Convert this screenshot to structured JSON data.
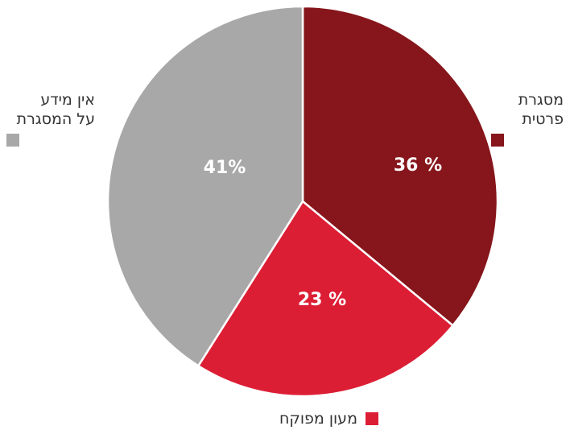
{
  "chart_data": {
    "type": "pie",
    "slices": [
      {
        "label_lines": [
          "מסגרת",
          "פרטית"
        ],
        "value": 36,
        "value_label": "36 %",
        "color": "#86161b"
      },
      {
        "label_lines": [
          "מעון מפוקח"
        ],
        "value": 23,
        "value_label": "23 %",
        "color": "#dc1e35"
      },
      {
        "label_lines": [
          "אין מידע",
          "על המסגרת"
        ],
        "value": 41,
        "value_label": "41%",
        "color": "#a8a8a8"
      }
    ],
    "start_angle": "12 o'clock",
    "direction": "clockwise",
    "legend": "around the pie"
  }
}
